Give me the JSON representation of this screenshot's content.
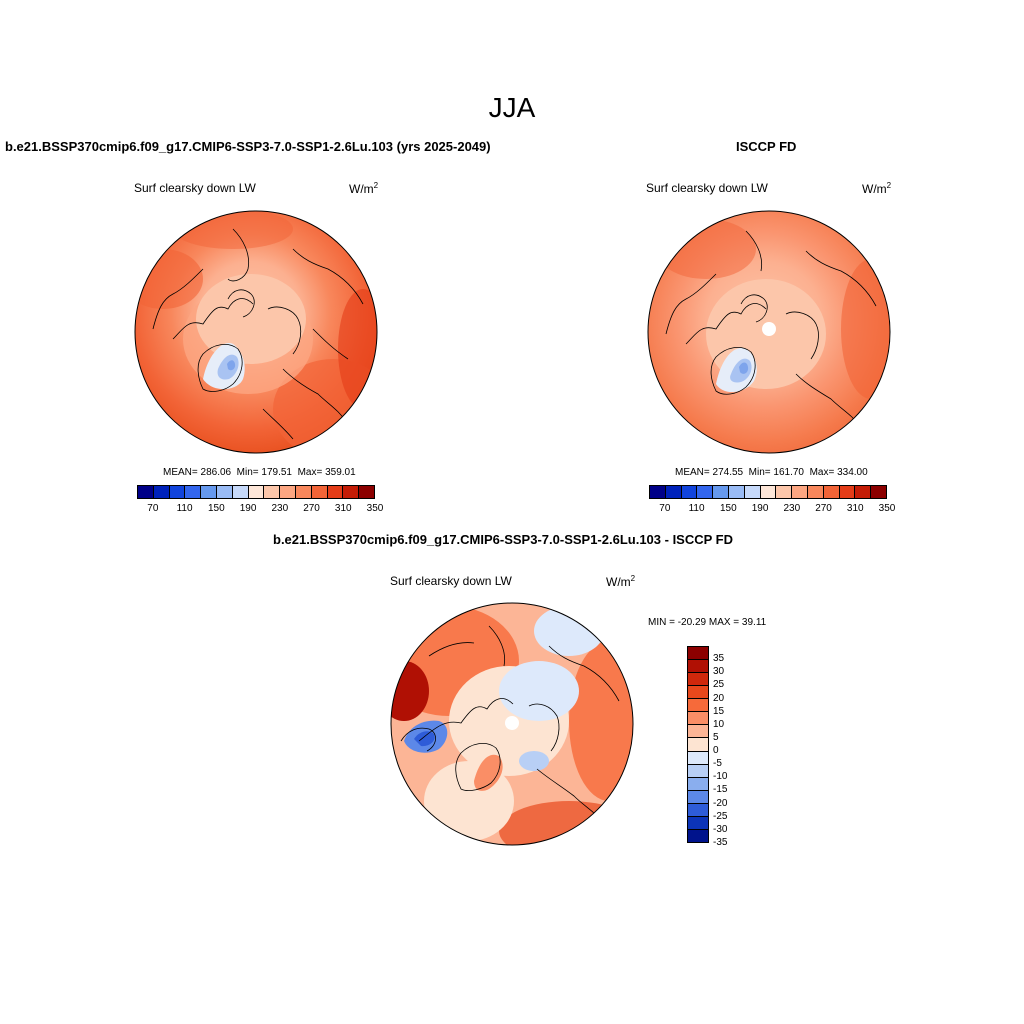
{
  "figure": {
    "title": "JJA"
  },
  "panels": [
    {
      "title": "b.e21.BSSP370cmip6.f09_g17.CMIP6-SSP3-7.0-SSP1-2.6Lu.103 (yrs 2025-2049)",
      "variable": "Surf clearsky down LW",
      "units": "W/m",
      "units_sup": "2",
      "stats_mean_label": "MEAN=",
      "stats_mean": "286.06",
      "stats_min_label": "Min=",
      "stats_min": "179.51",
      "stats_max_label": "Max=",
      "stats_max": "359.01"
    },
    {
      "title": "ISCCP FD",
      "variable": "Surf clearsky down LW",
      "units": "W/m",
      "units_sup": "2",
      "stats_mean_label": "MEAN=",
      "stats_mean": "274.55",
      "stats_min_label": "Min=",
      "stats_min": "161.70",
      "stats_max_label": "Max=",
      "stats_max": "334.00"
    },
    {
      "title": "b.e21.BSSP370cmip6.f09_g17.CMIP6-SSP3-7.0-SSP1-2.6Lu.103 - ISCCP FD",
      "variable": "Surf clearsky down LW",
      "units": "W/m",
      "units_sup": "2",
      "stats_text": "MIN = -20.29 MAX =  39.11"
    }
  ],
  "colorbar_abs": {
    "tick_labels": [
      "70",
      "110",
      "150",
      "190",
      "230",
      "270",
      "310",
      "350"
    ],
    "colors": [
      "#000088",
      "#0022bb",
      "#1144dd",
      "#3366ee",
      "#6699ee",
      "#99bbf5",
      "#c6d9fa",
      "#fde6d8",
      "#fcc6aa",
      "#fca682",
      "#f8875c",
      "#f26437",
      "#e43c18",
      "#c41c06",
      "#8c0000"
    ]
  },
  "colorbar_diff": {
    "tick_labels": [
      "35",
      "30",
      "25",
      "20",
      "15",
      "10",
      "5",
      "0",
      "-5",
      "-10",
      "-15",
      "-20",
      "-25",
      "-30",
      "-35"
    ],
    "colors": [
      "#8c0000",
      "#b01004",
      "#d0280c",
      "#e8481c",
      "#f66a3a",
      "#fa8e66",
      "#fcb596",
      "#fde4d2",
      "#dde9fb",
      "#b8cff5",
      "#8aaeee",
      "#5c88e8",
      "#2e5cd8",
      "#0c34b8",
      "#00138c"
    ]
  }
}
